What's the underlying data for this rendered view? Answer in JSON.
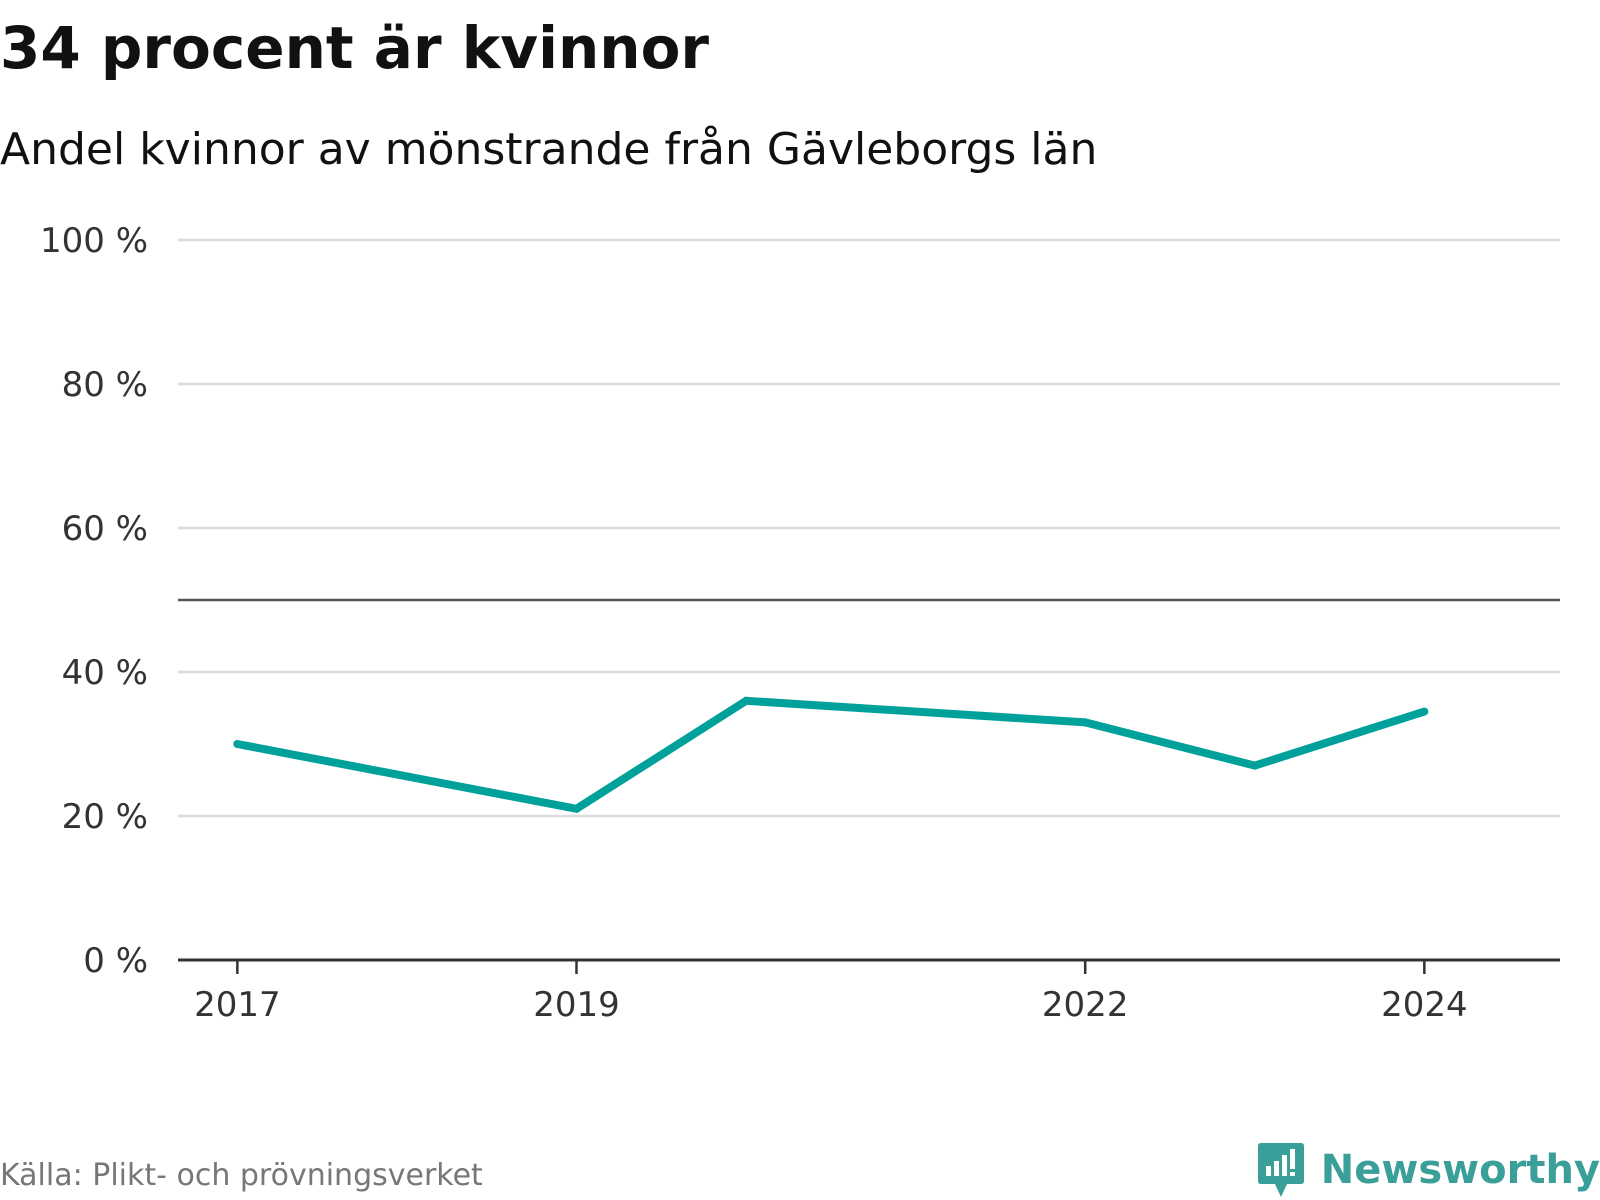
{
  "header": {
    "title": "34 procent är kvinnor",
    "subtitle": "Andel kvinnor av mönstrande från Gävleborgs län"
  },
  "footer": {
    "source": "Källa: Plikt- och prövningsverket",
    "brand": "Newsworthy",
    "brand_icon": "newsworthy-logo-icon"
  },
  "colors": {
    "line": "#00a19a",
    "grid": "#dddddd",
    "reference": "#555555",
    "axis": "#333333",
    "brand": "#3a9f98"
  },
  "chart_data": {
    "type": "line",
    "title": "34 procent är kvinnor",
    "subtitle": "Andel kvinnor av mönstrande från Gävleborgs län",
    "xlabel": "",
    "ylabel": "",
    "x": [
      2017,
      2019,
      2020,
      2022,
      2023,
      2024
    ],
    "x_tick_labels": [
      "2017",
      "2019",
      "2022",
      "2024"
    ],
    "x_tick_values": [
      2017,
      2019,
      2022,
      2024
    ],
    "series": [
      {
        "name": "Andel kvinnor",
        "values": [
          30,
          21,
          36,
          33,
          27,
          34.5
        ]
      }
    ],
    "ylim": [
      0,
      100
    ],
    "y_ticks": [
      0,
      20,
      40,
      60,
      80,
      100
    ],
    "y_tick_labels": [
      "0 %",
      "20 %",
      "40 %",
      "60 %",
      "80 %",
      "100 %"
    ],
    "reference_line": 50,
    "grid": true,
    "legend": "none"
  }
}
